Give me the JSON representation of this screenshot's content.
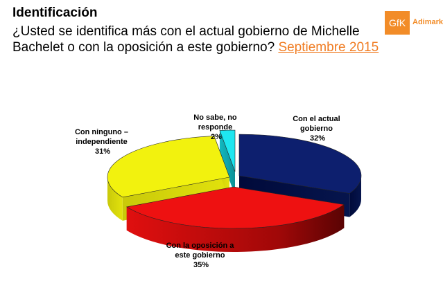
{
  "header": {
    "title": "Identificación",
    "question": "¿Usted se identifica más con el actual gobierno de Michelle Bachelet o con la oposición a este gobierno?",
    "date": "Septiembre 2015"
  },
  "logo": {
    "mark": "GfK",
    "brand": "Adimark"
  },
  "colors": {
    "navy": "#0d1f6e",
    "red": "#ee1111",
    "yellow": "#f2f20e",
    "cyan": "#1ee6f0",
    "date_link": "#f07c22",
    "logo": "#f28c28"
  },
  "chart_data": {
    "type": "pie",
    "style": "3d-exploded",
    "slices": [
      {
        "label": [
          "Con el actual",
          "gobierno",
          "32%"
        ],
        "name": "Con el actual gobierno",
        "value": 32,
        "color": "#0d1f6e"
      },
      {
        "label": [
          "Con la oposición a",
          "este gobierno",
          "35%"
        ],
        "name": "Con la oposición a este gobierno",
        "value": 35,
        "color": "#ee1111"
      },
      {
        "label": [
          "Con ninguno –",
          "independiente",
          "31%"
        ],
        "name": "Con ninguno – independiente",
        "value": 31,
        "color": "#f2f20e"
      },
      {
        "label": [
          "No sabe, no",
          "responde",
          "2%"
        ],
        "name": "No sabe, no responde",
        "value": 2,
        "color": "#1ee6f0"
      }
    ]
  }
}
